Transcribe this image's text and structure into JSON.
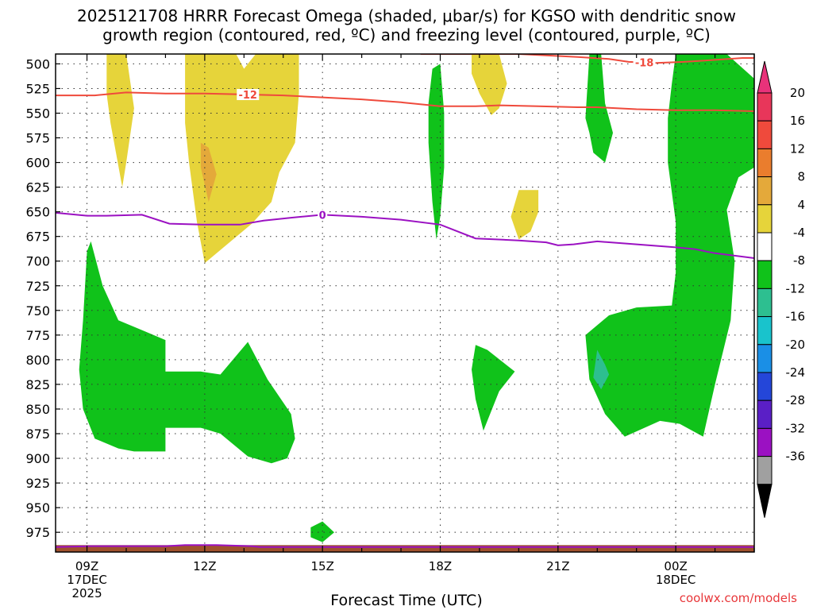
{
  "title_line1": "2025121708 HRRR Forecast Omega (shaded, μbar/s) for KGSO with dendritic snow",
  "title_line2": "growth region (contoured, red, ºC) and freezing level (contoured, purple, ºC)",
  "credit": "coolwx.com/models",
  "chart_data": {
    "type": "heatmap",
    "xlabel": "Forecast Time (UTC)",
    "ylabel": "",
    "y_ticks": [
      500,
      525,
      550,
      575,
      600,
      625,
      650,
      675,
      700,
      725,
      750,
      775,
      800,
      825,
      850,
      875,
      900,
      925,
      950,
      975
    ],
    "ylim": [
      995,
      490
    ],
    "x_range_hours": [
      8.2,
      26.0
    ],
    "x_ticks": [
      {
        "hour": 9,
        "lines": [
          "09Z",
          "17DEC",
          "2025"
        ]
      },
      {
        "hour": 12,
        "lines": [
          "12Z"
        ]
      },
      {
        "hour": 15,
        "lines": [
          "15Z"
        ]
      },
      {
        "hour": 18,
        "lines": [
          "18Z"
        ]
      },
      {
        "hour": 21,
        "lines": [
          "21Z"
        ]
      },
      {
        "hour": 24,
        "lines": [
          "00Z",
          "18DEC"
        ]
      }
    ],
    "grid": true,
    "colorbar": {
      "labels": [
        "20",
        "16",
        "12",
        "8",
        "4",
        "-4",
        "-8",
        "-12",
        "-16",
        "-20",
        "-24",
        "-28",
        "-32",
        "-36"
      ],
      "colors": [
        "#e8365a",
        "#ef4a3c",
        "#ea7d2d",
        "#e4a93a",
        "#e6d43a",
        "#ffffff",
        "#10c21a",
        "#2dbf90",
        "#19c3cc",
        "#1a8fe6",
        "#2446d9",
        "#5a1fc6",
        "#9b11c2",
        "#a0a0a0"
      ],
      "top_cap_color": "#e8327a",
      "bottom_cap_color": "#000000"
    },
    "omega_regions": [
      {
        "value": "4 to 8",
        "color": "#e6d43a",
        "points": [
          [
            9.5,
            490
          ],
          [
            10.0,
            490
          ],
          [
            10.2,
            545
          ],
          [
            10.0,
            600
          ],
          [
            9.9,
            625
          ],
          [
            9.6,
            560
          ],
          [
            9.5,
            530
          ]
        ]
      },
      {
        "value": "4 to 8",
        "color": "#e6d43a",
        "points": [
          [
            11.5,
            490
          ],
          [
            12.8,
            490
          ],
          [
            13.0,
            505
          ],
          [
            13.3,
            490
          ],
          [
            14.4,
            490
          ],
          [
            14.4,
            530
          ],
          [
            14.3,
            580
          ],
          [
            13.9,
            610
          ],
          [
            13.7,
            640
          ],
          [
            13.2,
            662
          ],
          [
            12.0,
            702
          ],
          [
            11.8,
            660
          ],
          [
            11.6,
            600
          ],
          [
            11.5,
            560
          ]
        ]
      },
      {
        "value": "8 to 12",
        "color": "#e4a93a",
        "points": [
          [
            11.9,
            580
          ],
          [
            12.1,
            585
          ],
          [
            12.3,
            612
          ],
          [
            12.1,
            640
          ],
          [
            11.9,
            605
          ]
        ]
      },
      {
        "value": "4 to 8",
        "color": "#e6d43a",
        "points": [
          [
            18.8,
            490
          ],
          [
            19.5,
            490
          ],
          [
            19.7,
            520
          ],
          [
            19.5,
            545
          ],
          [
            19.3,
            552
          ],
          [
            19.0,
            530
          ],
          [
            18.8,
            510
          ]
        ]
      },
      {
        "value": "4 to 8",
        "color": "#e6d43a",
        "points": [
          [
            20.0,
            628
          ],
          [
            20.5,
            628
          ],
          [
            20.5,
            650
          ],
          [
            20.3,
            670
          ],
          [
            20.0,
            678
          ],
          [
            19.8,
            655
          ]
        ]
      },
      {
        "value": "-4 to -8",
        "color": "#10c21a",
        "points": [
          [
            17.8,
            505
          ],
          [
            18.0,
            500
          ],
          [
            18.1,
            550
          ],
          [
            18.1,
            605
          ],
          [
            18.0,
            655
          ],
          [
            17.9,
            678
          ],
          [
            17.8,
            640
          ],
          [
            17.7,
            580
          ],
          [
            17.7,
            540
          ]
        ]
      },
      {
        "value": "-4 to -8",
        "color": "#10c21a",
        "points": [
          [
            21.8,
            490
          ],
          [
            22.1,
            490
          ],
          [
            22.2,
            540
          ],
          [
            22.4,
            570
          ],
          [
            22.2,
            600
          ],
          [
            21.9,
            590
          ],
          [
            21.8,
            570
          ],
          [
            21.7,
            555
          ]
        ]
      },
      {
        "value": "-4 to -8",
        "color": "#10c21a",
        "points": [
          [
            24.0,
            490
          ],
          [
            25.3,
            490
          ],
          [
            26.0,
            515
          ],
          [
            26.0,
            605
          ],
          [
            25.6,
            615
          ],
          [
            25.3,
            648
          ],
          [
            25.5,
            700
          ],
          [
            25.4,
            760
          ],
          [
            25.0,
            825
          ],
          [
            24.8,
            860
          ],
          [
            24.7,
            878
          ],
          [
            24.1,
            865
          ],
          [
            23.6,
            862
          ],
          [
            22.7,
            878
          ],
          [
            22.2,
            855
          ],
          [
            21.8,
            820
          ],
          [
            21.7,
            775
          ],
          [
            22.3,
            755
          ],
          [
            23.0,
            747
          ],
          [
            23.9,
            745
          ],
          [
            24.0,
            712
          ],
          [
            24.0,
            660
          ],
          [
            23.8,
            600
          ],
          [
            23.8,
            555
          ],
          [
            23.9,
            520
          ]
        ]
      },
      {
        "value": "-8 to -12",
        "color": "#2dbf90",
        "points": [
          [
            22.0,
            790
          ],
          [
            22.2,
            805
          ],
          [
            22.3,
            815
          ],
          [
            22.1,
            830
          ],
          [
            21.9,
            818
          ]
        ]
      },
      {
        "value": "-4 to -8",
        "color": "#10c21a",
        "points": [
          [
            9.0,
            690
          ],
          [
            9.1,
            680
          ],
          [
            9.4,
            725
          ],
          [
            9.8,
            760
          ],
          [
            10.4,
            770
          ],
          [
            11.0,
            780
          ],
          [
            11.0,
            812
          ],
          [
            11.9,
            812
          ],
          [
            12.4,
            815
          ],
          [
            13.1,
            782
          ],
          [
            13.6,
            820
          ],
          [
            14.2,
            855
          ],
          [
            14.3,
            880
          ],
          [
            14.1,
            900
          ],
          [
            13.7,
            905
          ],
          [
            13.1,
            898
          ],
          [
            12.4,
            875
          ],
          [
            11.9,
            869
          ],
          [
            11.0,
            869
          ],
          [
            11.0,
            893
          ],
          [
            10.2,
            893
          ],
          [
            9.8,
            890
          ],
          [
            9.2,
            880
          ],
          [
            8.9,
            850
          ],
          [
            8.8,
            810
          ],
          [
            8.9,
            760
          ]
        ]
      },
      {
        "value": "-4 to -8",
        "color": "#10c21a",
        "points": [
          [
            18.9,
            785
          ],
          [
            19.2,
            790
          ],
          [
            19.9,
            812
          ],
          [
            19.5,
            832
          ],
          [
            19.1,
            872
          ],
          [
            18.9,
            840
          ],
          [
            18.8,
            810
          ]
        ]
      },
      {
        "value": "-4 to -8",
        "color": "#10c21a",
        "points": [
          [
            14.7,
            970
          ],
          [
            15.0,
            964
          ],
          [
            15.3,
            975
          ],
          [
            15.0,
            985
          ],
          [
            14.7,
            980
          ]
        ]
      }
    ],
    "contours": [
      {
        "label": "-12",
        "color": "#ef4a3c",
        "label_at": 13.1,
        "points": [
          [
            8.2,
            532
          ],
          [
            9.2,
            532
          ],
          [
            10.0,
            529
          ],
          [
            11.0,
            530
          ],
          [
            12.0,
            530
          ],
          [
            13.0,
            531
          ],
          [
            14.0,
            532
          ],
          [
            15.0,
            534
          ],
          [
            16.0,
            536
          ],
          [
            17.0,
            539
          ],
          [
            18.0,
            543
          ],
          [
            18.9,
            543
          ],
          [
            19.5,
            542
          ],
          [
            20.5,
            543
          ],
          [
            21.5,
            544
          ],
          [
            22.0,
            544
          ],
          [
            23.0,
            546
          ],
          [
            24.0,
            547
          ],
          [
            25.0,
            547
          ],
          [
            26.0,
            548
          ]
        ]
      },
      {
        "label": "-18",
        "color": "#ef4a3c",
        "label_at": 23.2,
        "points": [
          [
            17.5,
            490
          ],
          [
            20.0,
            490
          ],
          [
            21.5,
            493
          ],
          [
            22.3,
            495
          ],
          [
            22.8,
            498
          ],
          [
            23.5,
            499
          ],
          [
            24.2,
            498
          ],
          [
            25.0,
            496
          ],
          [
            25.7,
            494
          ],
          [
            26.0,
            494
          ]
        ]
      },
      {
        "label": "0",
        "color": "#9b11c2",
        "label_at": 15.0,
        "points": [
          [
            8.2,
            651
          ],
          [
            9.0,
            654
          ],
          [
            9.5,
            654
          ],
          [
            10.4,
            653
          ],
          [
            11.1,
            662
          ],
          [
            12.0,
            663
          ],
          [
            12.9,
            663
          ],
          [
            13.5,
            659
          ],
          [
            14.2,
            656
          ],
          [
            15.0,
            653
          ],
          [
            16.0,
            655
          ],
          [
            17.0,
            658
          ],
          [
            18.0,
            663
          ],
          [
            18.9,
            677
          ],
          [
            20.0,
            679
          ],
          [
            20.7,
            681
          ],
          [
            21.0,
            684
          ],
          [
            21.4,
            683
          ],
          [
            22.0,
            680
          ],
          [
            23.0,
            683
          ],
          [
            24.0,
            686
          ],
          [
            24.5,
            688
          ],
          [
            25.0,
            692
          ],
          [
            26.0,
            697
          ]
        ]
      },
      {
        "label": "",
        "color": "#9b11c2",
        "label_at": null,
        "points": [
          [
            8.2,
            990
          ],
          [
            9.1,
            989
          ],
          [
            10.0,
            989
          ],
          [
            11.0,
            989
          ],
          [
            11.5,
            988
          ],
          [
            12.3,
            988
          ],
          [
            13.2,
            989
          ],
          [
            13.4,
            990
          ],
          [
            26.0,
            990
          ]
        ]
      }
    ],
    "terrain": {
      "color": "#a0522d",
      "top_pressure": 988
    }
  }
}
